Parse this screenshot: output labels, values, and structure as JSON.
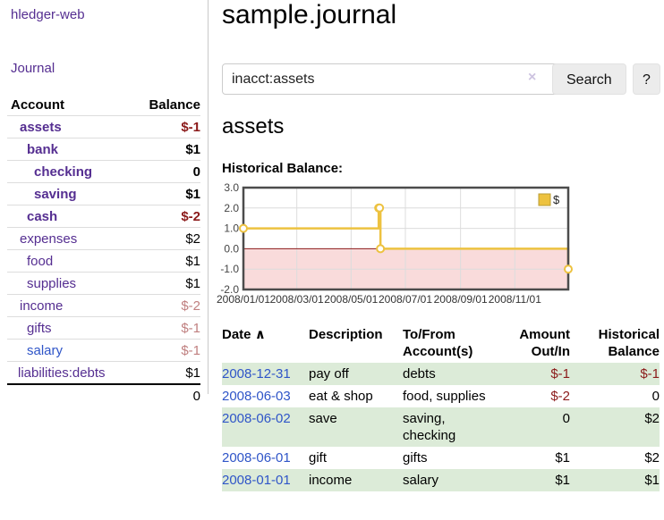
{
  "sidebar": {
    "app_title": "hledger-web",
    "journal_link": "Journal",
    "accounts": {
      "header": {
        "account": "Account",
        "balance": "Balance"
      },
      "rows": [
        {
          "name": "assets",
          "balance": "$-1"
        },
        {
          "name": "bank",
          "balance": "$1"
        },
        {
          "name": "checking",
          "balance": "0"
        },
        {
          "name": "saving",
          "balance": "$1"
        },
        {
          "name": "cash",
          "balance": "$-2"
        },
        {
          "name": "expenses",
          "balance": "$2"
        },
        {
          "name": "food",
          "balance": "$1"
        },
        {
          "name": "supplies",
          "balance": "$1"
        },
        {
          "name": "income",
          "balance": "$-2"
        },
        {
          "name": "gifts",
          "balance": "$-1"
        },
        {
          "name": "salary",
          "balance": "$-1"
        },
        {
          "name": "liabilities:debts",
          "balance": "$1"
        }
      ],
      "total": "0"
    }
  },
  "main": {
    "title": "sample.journal",
    "search": {
      "value": "inacct:assets",
      "clear_icon": "×",
      "button": "Search",
      "help": "?"
    },
    "heading": "assets",
    "chart_label": "Historical Balance:"
  },
  "chart_data": {
    "type": "line",
    "step": true,
    "title": "Historical Balance:",
    "series": [
      {
        "name": "$",
        "color": "#EDC240",
        "points": [
          [
            "2008-01-01",
            1
          ],
          [
            "2008-06-01",
            2
          ],
          [
            "2008-06-02",
            2
          ],
          [
            "2008-06-03",
            0
          ],
          [
            "2008-12-31",
            -1
          ]
        ]
      }
    ],
    "x_range": [
      "2008-01-01",
      "2008-12-31"
    ],
    "ylim": [
      -2,
      3
    ],
    "yticks": [
      3.0,
      2.0,
      1.0,
      0.0,
      -1.0,
      -2.0
    ],
    "xticks": [
      "2008/01/01",
      "2008/03/01",
      "2008/05/01",
      "2008/07/01",
      "2008/09/01",
      "2008/11/01"
    ],
    "legend": {
      "label": "$",
      "position": "top-right"
    },
    "grid": true,
    "grid_color": "#dcdcdc",
    "border_color": "#4c4c4c",
    "negative_region_color": "#f9dbdb",
    "zero_line_color": "#8b1a1a"
  },
  "register": {
    "headers": {
      "date": "Date",
      "description": "Description",
      "accounts": "To/From Account(s)",
      "amount": "Amount Out/In",
      "balance": "Historical Balance"
    },
    "sort_icon": "∧",
    "rows": [
      {
        "date": "2008-12-31",
        "description": "pay off",
        "accounts": "debts",
        "amount": "$-1",
        "balance": "$-1"
      },
      {
        "date": "2008-06-03",
        "description": "eat & shop",
        "accounts": "food, supplies",
        "amount": "$-2",
        "balance": "0"
      },
      {
        "date": "2008-06-02",
        "description": "save",
        "accounts": "saving, checking",
        "amount": "0",
        "balance": "$2"
      },
      {
        "date": "2008-06-01",
        "description": "gift",
        "accounts": "gifts",
        "amount": "$1",
        "balance": "$2"
      },
      {
        "date": "2008-01-01",
        "description": "income",
        "accounts": "salary",
        "amount": "$1",
        "balance": "$1"
      }
    ]
  }
}
